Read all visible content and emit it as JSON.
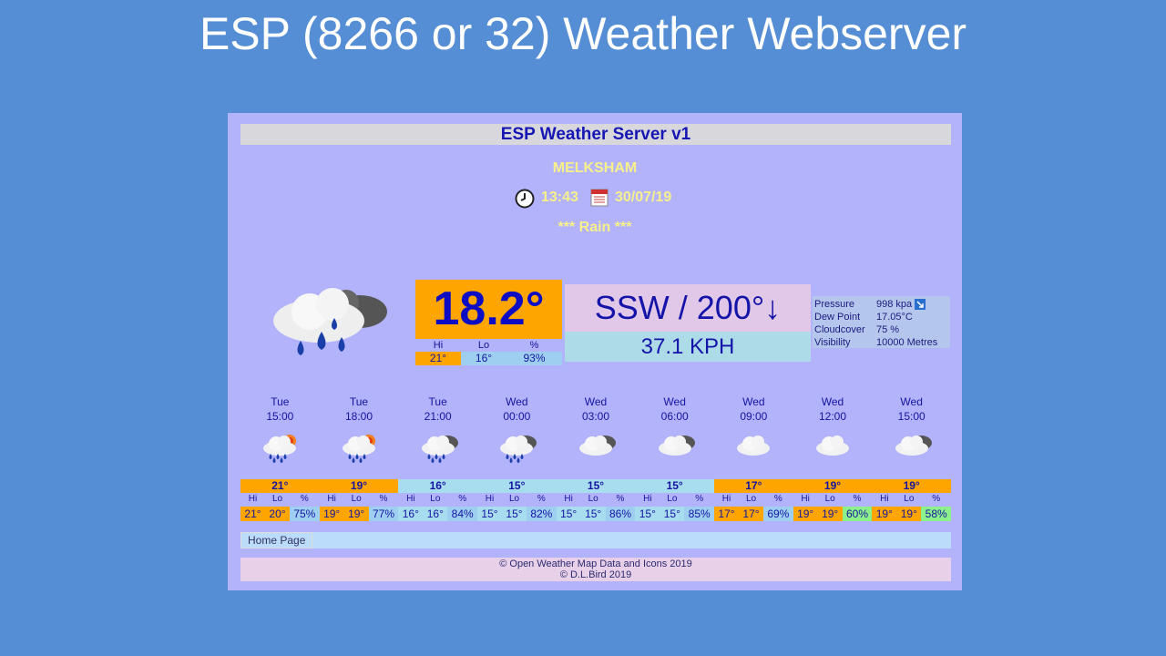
{
  "slide_title": "ESP (8266 or 32) Weather Webserver",
  "header": {
    "title": "ESP Weather Server v1"
  },
  "location": "MELKSHAM",
  "time": "13:43",
  "date": "30/07/19",
  "condition": "*** Rain ***",
  "current": {
    "temperature": "18.2°",
    "wind": "SSW / 200°↓",
    "wind_speed": "37.1 KPH",
    "hi_label": "Hi",
    "lo_label": "Lo",
    "humidity_label": "%",
    "hi": "21°",
    "lo": "16°",
    "humidity": "93%"
  },
  "details": [
    {
      "label": "Pressure",
      "value": "998 kpa"
    },
    {
      "label": "Dew Point",
      "value": "17.05°C"
    },
    {
      "label": "Cloudcover",
      "value": "75 %"
    },
    {
      "label": "Visibility",
      "value": "10000 Metres"
    }
  ],
  "forecast_labels": {
    "hi": "Hi",
    "lo": "Lo",
    "humidity": "%"
  },
  "forecast": [
    {
      "day": "Tue",
      "time": "15:00",
      "temp": "21°",
      "hi": "21°",
      "lo": "20°",
      "humidity": "75%"
    },
    {
      "day": "Tue",
      "time": "18:00",
      "temp": "19°",
      "hi": "19°",
      "lo": "19°",
      "humidity": "77%"
    },
    {
      "day": "Tue",
      "time": "21:00",
      "temp": "16°",
      "hi": "16°",
      "lo": "16°",
      "humidity": "84%"
    },
    {
      "day": "Wed",
      "time": "00:00",
      "temp": "15°",
      "hi": "15°",
      "lo": "15°",
      "humidity": "82%"
    },
    {
      "day": "Wed",
      "time": "03:00",
      "temp": "15°",
      "hi": "15°",
      "lo": "15°",
      "humidity": "86%"
    },
    {
      "day": "Wed",
      "time": "06:00",
      "temp": "15°",
      "hi": "15°",
      "lo": "15°",
      "humidity": "85%"
    },
    {
      "day": "Wed",
      "time": "09:00",
      "temp": "17°",
      "hi": "17°",
      "lo": "17°",
      "humidity": "69%"
    },
    {
      "day": "Wed",
      "time": "12:00",
      "temp": "19°",
      "hi": "19°",
      "lo": "19°",
      "humidity": "60%"
    },
    {
      "day": "Wed",
      "time": "15:00",
      "temp": "19°",
      "hi": "19°",
      "lo": "19°",
      "humidity": "58%"
    }
  ],
  "footer": {
    "nav": "Home Page",
    "credits": [
      "© Open Weather Map Data and Icons 2019",
      "© D.L.Bird 2019"
    ]
  }
}
